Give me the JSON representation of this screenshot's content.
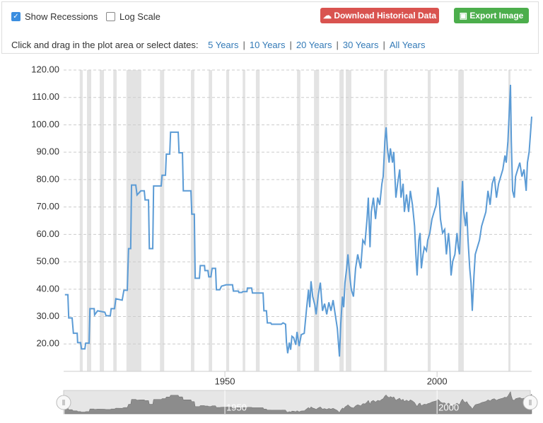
{
  "controls": {
    "show_recessions": {
      "label": "Show Recessions",
      "checked": true
    },
    "log_scale": {
      "label": "Log Scale",
      "checked": false
    },
    "download": "Download Historical Data",
    "export": "Export Image",
    "prompt": "Click and drag in the plot area or select dates:",
    "ranges": [
      "5 Years",
      "10 Years",
      "20 Years",
      "30 Years",
      "All Years"
    ]
  },
  "chart_data": {
    "type": "line",
    "color": "#5b9bd5",
    "recession_color": "#e3e3e3",
    "grid": true,
    "log_scale": false,
    "xlim": [
      1912,
      2022.3
    ],
    "xticks": [
      1950,
      2000
    ],
    "ylim": [
      10,
      120
    ],
    "yticks": [
      {
        "value": 20,
        "label": "20.00"
      },
      {
        "value": 30,
        "label": "30.00"
      },
      {
        "value": 40,
        "label": "40.00"
      },
      {
        "value": 50,
        "label": "50.00"
      },
      {
        "value": 60,
        "label": "60.00"
      },
      {
        "value": 70,
        "label": "70.00"
      },
      {
        "value": 80,
        "label": "80.00"
      },
      {
        "value": 90,
        "label": "90.00"
      },
      {
        "value": 100,
        "label": "100.00"
      },
      {
        "value": 110,
        "label": "110.00"
      },
      {
        "value": 120,
        "label": "120.00"
      }
    ],
    "recessions": [
      [
        1915.8,
        1916.5
      ],
      [
        1917.5,
        1918.5
      ],
      [
        1920.5,
        1921.5
      ],
      [
        1923.7,
        1924.5
      ],
      [
        1926.8,
        1930.3
      ],
      [
        1934.7,
        1935.7
      ],
      [
        1942,
        1942.8
      ],
      [
        1946.2,
        1947
      ],
      [
        1950.3,
        1951
      ],
      [
        1954.2,
        1954.8
      ],
      [
        1957.3,
        1958.2
      ],
      [
        1967,
        1967.8
      ],
      [
        1971,
        1972.2
      ],
      [
        1977,
        1978
      ],
      [
        1978.5,
        1979.8
      ],
      [
        1987.5,
        1988.2
      ],
      [
        1997.8,
        1998.5
      ],
      [
        2005,
        2006.3
      ],
      [
        2016.8,
        2017.3
      ]
    ],
    "x": [
      1912.3,
      1913.0,
      1913.2,
      1914.0,
      1914.3,
      1915.2,
      1915.3,
      1916.0,
      1916.2,
      1917.0,
      1917.2,
      1918.0,
      1918.2,
      1919.2,
      1919.3,
      1920.0,
      1921.7,
      1922.0,
      1923.0,
      1923.2,
      1924.0,
      1924.3,
      1925.8,
      1926.2,
      1927.0,
      1927.3,
      1927.8,
      1928.0,
      1929.0,
      1929.3,
      1930.2,
      1931.0,
      1931.2,
      1932.0,
      1932.2,
      1933.0,
      1933.2,
      1935.0,
      1935.2,
      1936.0,
      1936.2,
      1937.0,
      1937.2,
      1939.0,
      1939.2,
      1940.0,
      1940.2,
      1942.0,
      1942.2,
      1942.8,
      1943.0,
      1944.0,
      1944.2,
      1945.2,
      1945.3,
      1946.0,
      1946.2,
      1946.7,
      1947.0,
      1947.8,
      1948.0,
      1948.8,
      1949.2,
      1950.3,
      1951.8,
      1952.0,
      1953.2,
      1953.3,
      1954.0,
      1954.2,
      1955.2,
      1955.3,
      1956.3,
      1956.5,
      1959.0,
      1959.2,
      1959.8,
      1960.0,
      1960.8,
      1961.0,
      1963.3,
      1963.7,
      1964.3,
      1964.5,
      1964.8,
      1965.2,
      1965.5,
      1965.8,
      1966.2,
      1966.7,
      1967.0,
      1967.5,
      1968.0,
      1968.7,
      1969.2,
      1969.7,
      1970.0,
      1970.3,
      1970.7,
      1971.2,
      1971.5,
      1972.0,
      1972.5,
      1973.0,
      1973.5,
      1974.0,
      1974.5,
      1975.0,
      1975.5,
      1976.0,
      1976.5,
      1977.0,
      1977.3,
      1977.7,
      1978.0,
      1978.3,
      1978.7,
      1979.0,
      1979.5,
      1979.8,
      1980.3,
      1980.8,
      1981.3,
      1982.0,
      1982.5,
      1983.0,
      1983.5,
      1983.8,
      1984.2,
      1984.5,
      1985.0,
      1985.5,
      1986.0,
      1986.5,
      1987.0,
      1987.3,
      1987.7,
      1988.0,
      1988.3,
      1988.7,
      1989.0,
      1989.5,
      1989.8,
      1990.3,
      1990.7,
      1991.2,
      1991.5,
      1992.0,
      1992.3,
      1992.8,
      1993.3,
      1993.7,
      1994.2,
      1994.7,
      1995.0,
      1995.3,
      1995.7,
      1996.0,
      1996.3,
      1996.7,
      1997.0,
      1997.5,
      1997.8,
      1998.3,
      1998.8,
      1999.3,
      1999.8,
      2000.2,
      2000.5,
      2000.8,
      2001.3,
      2001.8,
      2002.2,
      2002.7,
      2003.0,
      2003.3,
      2003.7,
      2004.2,
      2004.7,
      2005.0,
      2005.3,
      2005.7,
      2006.0,
      2006.3,
      2006.7,
      2007.0,
      2007.3,
      2007.7,
      2008.0,
      2008.3,
      2008.7,
      2009.0,
      2009.5,
      2010.0,
      2010.5,
      2011.0,
      2011.5,
      2012.0,
      2012.5,
      2013.0,
      2013.5,
      2014.0,
      2014.5,
      2015.0,
      2015.5,
      2016.0,
      2016.3,
      2016.7,
      2017.0,
      2017.3,
      2017.5,
      2017.8,
      2018.2,
      2018.5,
      2019.0,
      2019.5,
      2020.0,
      2020.5,
      2021.0,
      2021.3,
      2021.7,
      2022.0,
      2022.3
    ],
    "values": [
      38.0,
      38.0,
      29.5,
      29.5,
      23.9,
      23.9,
      20.5,
      20.5,
      18.2,
      18.2,
      20.3,
      20.3,
      32.9,
      32.9,
      30.6,
      32.1,
      31.6,
      30.3,
      30.3,
      32.9,
      32.9,
      36.5,
      36.0,
      39.6,
      39.6,
      54.8,
      54.8,
      78.0,
      78.0,
      74.4,
      75.9,
      75.9,
      72.6,
      72.6,
      54.8,
      54.8,
      77.7,
      77.7,
      81.6,
      81.6,
      89.3,
      89.3,
      97.3,
      97.3,
      89.8,
      89.8,
      75.9,
      75.9,
      67.4,
      67.4,
      44.0,
      44.0,
      48.6,
      48.6,
      46.8,
      46.8,
      44.5,
      44.5,
      47.6,
      47.6,
      39.8,
      39.8,
      41.1,
      41.6,
      41.6,
      39.3,
      39.3,
      38.8,
      38.8,
      39.1,
      39.1,
      40.4,
      40.4,
      38.6,
      38.6,
      32.1,
      32.1,
      27.7,
      27.7,
      27.2,
      27.2,
      27.7,
      27.2,
      20.8,
      16.6,
      20.5,
      17.9,
      22.8,
      22.3,
      19.7,
      24.4,
      19.2,
      23.4,
      23.9,
      32.1,
      39.8,
      33.4,
      42.9,
      37.3,
      34.2,
      30.8,
      37.8,
      42.4,
      32.1,
      34.7,
      30.8,
      35.2,
      32.1,
      36.0,
      30.8,
      25.7,
      15.4,
      27.2,
      37.3,
      33.4,
      42.4,
      47.6,
      52.7,
      43.7,
      39.8,
      37.3,
      47.6,
      52.7,
      47.6,
      57.9,
      56.6,
      65.6,
      73.4,
      55.3,
      68.2,
      73.4,
      65.6,
      73.4,
      70.8,
      78.5,
      81.1,
      94.0,
      99.1,
      91.4,
      86.2,
      91.4,
      86.2,
      90.1,
      73.4,
      78.5,
      83.7,
      73.4,
      78.5,
      68.2,
      74.6,
      68.2,
      75.9,
      70.8,
      63.0,
      52.7,
      45.0,
      57.9,
      60.5,
      47.6,
      52.7,
      55.3,
      54.0,
      57.9,
      60.5,
      65.6,
      68.2,
      70.8,
      77.2,
      73.4,
      65.6,
      60.5,
      61.8,
      52.7,
      60.5,
      55.3,
      45.0,
      50.2,
      52.7,
      60.5,
      55.3,
      52.7,
      70.8,
      79.5,
      68.2,
      63.0,
      68.2,
      57.9,
      47.6,
      42.4,
      32.1,
      45.0,
      52.7,
      55.3,
      57.9,
      63.0,
      65.6,
      68.2,
      75.9,
      70.8,
      78.5,
      81.1,
      73.4,
      78.5,
      81.1,
      83.7,
      88.8,
      86.2,
      94.0,
      104.3,
      114.6,
      94.0,
      75.9,
      73.4,
      81.1,
      83.7,
      86.2,
      81.1,
      83.7,
      75.9,
      86.2,
      90.1,
      96.5,
      103.0
    ]
  }
}
